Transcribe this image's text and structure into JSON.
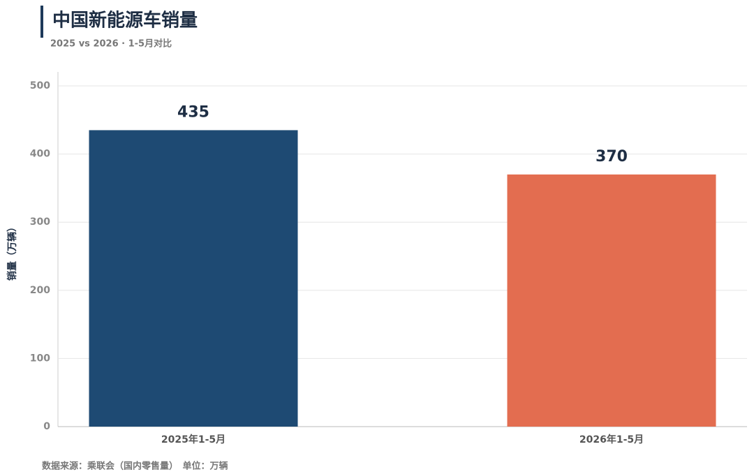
{
  "chart_data": {
    "type": "bar",
    "title": "中国新能源车销量",
    "subtitle": "2025 vs 2026 · 1-5月对比",
    "y_label": "销量（万辆）",
    "footer": "数据来源：乘联会（国内零售量）　单位：万辆",
    "categories": [
      "2025年1-5月",
      "2026年1-5月"
    ],
    "values": [
      435,
      370
    ],
    "colors": [
      "#1e4a73",
      "#e36d50"
    ],
    "ylim": [
      0,
      500
    ],
    "yticks": [
      0,
      100,
      200,
      300,
      400,
      500
    ],
    "grid": true
  }
}
